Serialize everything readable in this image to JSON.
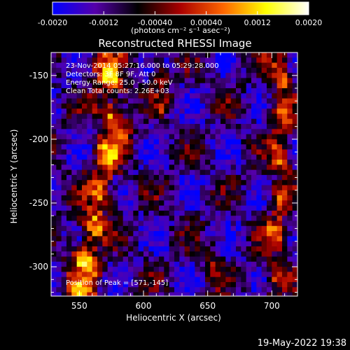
{
  "chart_data": {
    "type": "heatmap",
    "title": "Reconstructed RHESSI Image",
    "xlabel": "Heliocentric X (arcsec)",
    "ylabel": "Heliocentric Y (arcsec)",
    "xlim": [
      528,
      720
    ],
    "ylim": [
      -323,
      -132
    ],
    "xticks": [
      550,
      600,
      650,
      700
    ],
    "yticks": [
      -150,
      -200,
      -250,
      -300
    ],
    "colorbar": {
      "min": -0.002,
      "max": 0.002,
      "ticks": [
        {
          "value": -0.002,
          "label": "-0.0020"
        },
        {
          "value": -0.0012,
          "label": "-0.0012"
        },
        {
          "value": -0.0004,
          "label": "-0.00040"
        },
        {
          "value": 0.0004,
          "label": "0.00040"
        },
        {
          "value": 0.0012,
          "label": "0.0012"
        },
        {
          "value": 0.002,
          "label": "0.0020"
        }
      ],
      "unit_label": "(photons cm⁻² s⁻¹ asec⁻²)",
      "colors": [
        "#0000ff",
        "#5500aa",
        "#000000",
        "#aa0000",
        "#ff6600",
        "#ffff00",
        "#ffffff"
      ]
    },
    "annotations": [
      "23-Nov-2014 05:27:16.000 to 05:29:28.000",
      "Detectors: 3F 8F 9F, Att 0",
      "Energy Range: 25.0 - 50.0 keV",
      "Clean     Total counts: 2.26E+03"
    ],
    "peak_label": "Position of Peak = [571,-145]",
    "peak": {
      "x": 571,
      "y": -145
    },
    "emission_bands": [
      {
        "x": [
          570,
          575,
          577,
          572,
          566,
          561,
          556,
          552
        ],
        "y": [
          -140,
          -165,
          -190,
          -215,
          -240,
          -265,
          -290,
          -315
        ],
        "peak": 0.0021,
        "width_arcsec": 12
      },
      {
        "x": [
          611,
          617
        ],
        "y": [
          -140,
          -170
        ],
        "peak": 0.0011,
        "width_arcsec": 6
      },
      {
        "x": [
          655,
          652
        ],
        "y": [
          -285,
          -315
        ],
        "peak": 0.0008,
        "width_arcsec": 7
      },
      {
        "x": [
          706,
          708,
          705,
          703
        ],
        "y": [
          -140,
          -190,
          -250,
          -315
        ],
        "peak": 0.0016,
        "width_arcsec": 9
      }
    ]
  },
  "footer_timestamp": "19-May-2022 19:38"
}
